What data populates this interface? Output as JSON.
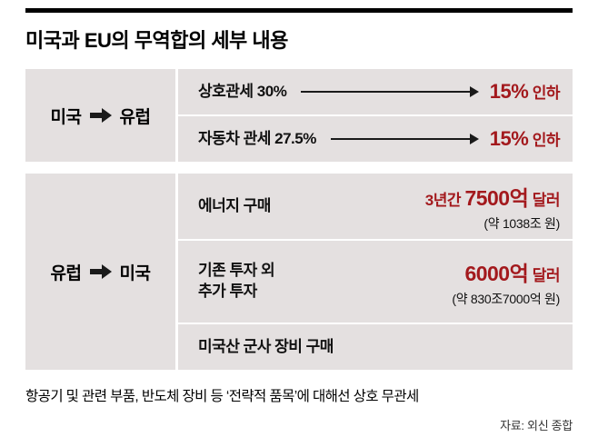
{
  "title": "미국과 EU의 무역합의 세부 내용",
  "sections": [
    {
      "from": "미국",
      "to": "유럽",
      "rows": [
        {
          "label": "상호관세 30%",
          "big": "15%",
          "suffix": "인하"
        },
        {
          "label": "자동차 관세 27.5%",
          "big": "15%",
          "suffix": "인하"
        }
      ]
    },
    {
      "from": "유럽",
      "to": "미국",
      "rows": [
        {
          "label": "에너지 구매",
          "prefix": "3년간",
          "big": "7500억",
          "suffix": "달러",
          "sub": "(약 1038조 원)"
        },
        {
          "label": "기존 투자 외\n추가 투자",
          "big": "6000억",
          "suffix": "달러",
          "sub": "(약 830조7000억 원)"
        },
        {
          "label": "미국산 군사 장비 구매"
        }
      ]
    }
  ],
  "footnote": "항공기 및 관련 부품, 반도체 장비 등 ‘전략적 품목’에 대해선 상호 무관세",
  "source": "자료: 외신 종합",
  "colors": {
    "accent_red": "#a3191d",
    "block_bg": "#e4e0e0"
  }
}
